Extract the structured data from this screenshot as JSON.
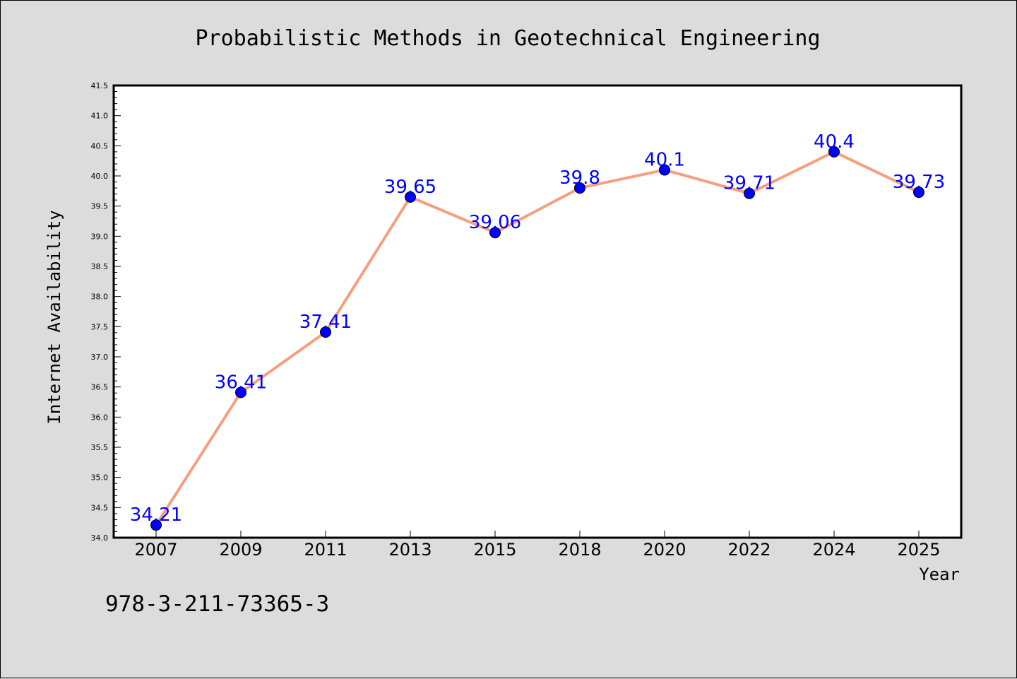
{
  "chart_data": {
    "type": "line",
    "title": "Probabilistic Methods in Geotechnical Engineering",
    "xlabel": "Year",
    "ylabel": "Internet Availability",
    "categories": [
      "2007",
      "2009",
      "2011",
      "2013",
      "2015",
      "2018",
      "2020",
      "2022",
      "2024",
      "2025"
    ],
    "values": [
      34.21,
      36.41,
      37.41,
      39.65,
      39.06,
      39.8,
      40.1,
      39.71,
      40.4,
      39.73
    ],
    "data_labels": [
      "34.21",
      "36.41",
      "37.41",
      "39.65",
      "39.06",
      "39.8",
      "40.1",
      "39.71",
      "40.4",
      "39.73"
    ],
    "ylim": [
      34.0,
      41.5
    ],
    "yticks": [
      "34.0",
      "34.5",
      "35.0",
      "35.5",
      "36.0",
      "36.5",
      "37.0",
      "37.5",
      "38.0",
      "38.5",
      "39.0",
      "39.5",
      "40.0",
      "40.5",
      "41.0",
      "41.5"
    ],
    "grid": false,
    "legend": "none",
    "colors": {
      "line": "#f4a07e",
      "marker": "#0000ff",
      "data_label": "#0000ff",
      "plot_background": "#ffffff",
      "figure_background": "#dcdcdc"
    }
  },
  "footer_text": "978-3-211-73365-3"
}
